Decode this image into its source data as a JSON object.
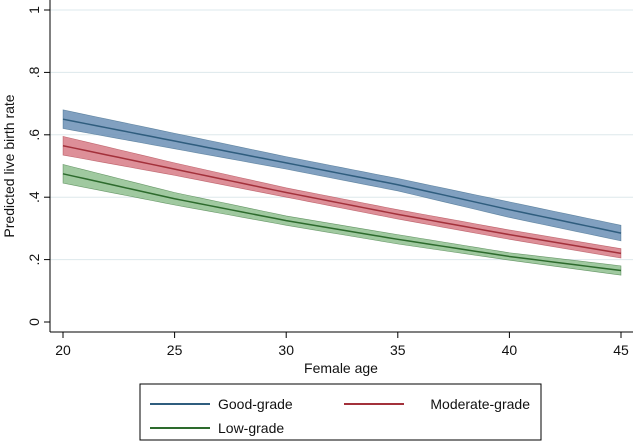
{
  "chart_data": {
    "type": "line",
    "title": "",
    "xlabel": "Female age",
    "ylabel": "Predicted live birth rate",
    "xlim": [
      20,
      45
    ],
    "ylim": [
      0,
      1
    ],
    "xticks": [
      20,
      25,
      30,
      35,
      40,
      45
    ],
    "yticks": [
      0,
      0.2,
      0.4,
      0.6,
      0.8,
      1
    ],
    "xtick_labels": [
      "20",
      "25",
      "30",
      "35",
      "40",
      "45"
    ],
    "ytick_labels": [
      "0",
      ".2",
      ".4",
      ".6",
      ".8",
      "1"
    ],
    "grid": true,
    "legend_position": "bottom",
    "series": [
      {
        "name": "Good-grade",
        "color": "#2f5d7e",
        "band_color": "#6b8fb5",
        "x": [
          20,
          25,
          30,
          35,
          40,
          45
        ],
        "y": [
          0.65,
          0.58,
          0.51,
          0.44,
          0.36,
          0.285
        ],
        "lower": [
          0.62,
          0.555,
          0.49,
          0.42,
          0.335,
          0.26
        ],
        "upper": [
          0.68,
          0.605,
          0.53,
          0.46,
          0.385,
          0.31
        ]
      },
      {
        "name": "Moderate-grade",
        "color": "#a3313b",
        "band_color": "#d77b86",
        "x": [
          20,
          25,
          30,
          35,
          40,
          45
        ],
        "y": [
          0.565,
          0.49,
          0.415,
          0.345,
          0.28,
          0.22
        ],
        "lower": [
          0.535,
          0.47,
          0.4,
          0.33,
          0.265,
          0.205
        ],
        "upper": [
          0.595,
          0.51,
          0.43,
          0.36,
          0.295,
          0.235
        ]
      },
      {
        "name": "Low-grade",
        "color": "#2d6b2d",
        "band_color": "#8fc08f",
        "x": [
          20,
          25,
          30,
          35,
          40,
          45
        ],
        "y": [
          0.475,
          0.395,
          0.325,
          0.265,
          0.21,
          0.165
        ],
        "lower": [
          0.445,
          0.375,
          0.31,
          0.25,
          0.198,
          0.15
        ],
        "upper": [
          0.505,
          0.415,
          0.34,
          0.28,
          0.222,
          0.18
        ]
      }
    ]
  }
}
